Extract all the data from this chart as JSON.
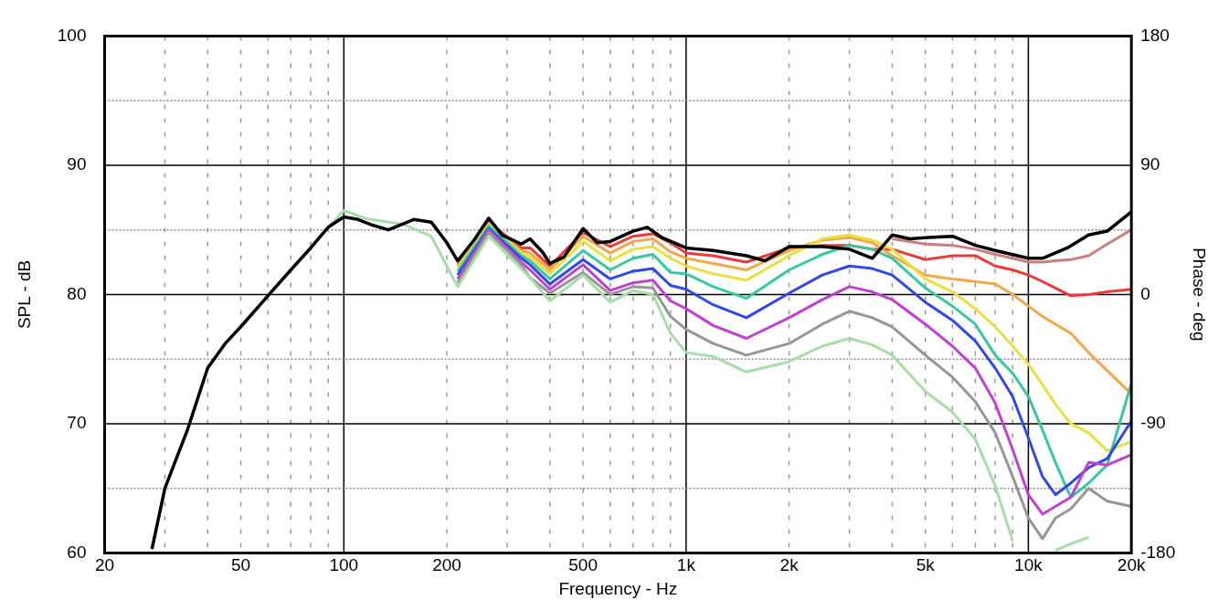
{
  "chart_data": {
    "type": "line",
    "xlabel": "Frequency - Hz",
    "ylabel": "SPL - dB",
    "y2label": "Phase - deg",
    "log": "x",
    "grid": true,
    "legend": false,
    "marker": "none",
    "line_style": "solid",
    "xlim": [
      20,
      20000
    ],
    "ylim": [
      60,
      100
    ],
    "y2lim": [
      -180,
      180
    ],
    "xticks": [
      20,
      {
        "value": 30,
        "label": null
      },
      {
        "value": 40,
        "label": null
      },
      50,
      {
        "value": 60,
        "label": null
      },
      {
        "value": 70,
        "label": null
      },
      {
        "value": 80,
        "label": null
      },
      {
        "value": 90,
        "label": null
      },
      100,
      200,
      {
        "value": 300,
        "label": null
      },
      {
        "value": 400,
        "label": null
      },
      500,
      {
        "value": 600,
        "label": null
      },
      {
        "value": 700,
        "label": null
      },
      {
        "value": 800,
        "label": null
      },
      {
        "value": 900,
        "label": null
      },
      {
        "value": 1000,
        "label": "1k"
      },
      {
        "value": 2000,
        "label": "2k"
      },
      {
        "value": 3000,
        "label": null
      },
      {
        "value": 4000,
        "label": null
      },
      {
        "value": 5000,
        "label": "5k"
      },
      {
        "value": 6000,
        "label": null
      },
      {
        "value": 7000,
        "label": null
      },
      {
        "value": 8000,
        "label": null
      },
      {
        "value": 9000,
        "label": null
      },
      {
        "value": 10000,
        "label": "10k"
      },
      {
        "value": 20000,
        "label": "20k"
      }
    ],
    "yticks": [
      60,
      {
        "value": 65,
        "label": null
      },
      70,
      {
        "value": 75,
        "label": null
      },
      80,
      {
        "value": 85,
        "label": null
      },
      90,
      {
        "value": 95,
        "label": null
      },
      100
    ],
    "y2ticks": [
      -180,
      -90,
      0,
      90,
      180
    ],
    "x": [
      215,
      265,
      330,
      350,
      400,
      500,
      600,
      700,
      800,
      900,
      1000,
      1200,
      1500,
      2000,
      2500,
      3000,
      3500,
      4000,
      5000,
      6000,
      7000,
      8000,
      9000,
      10000,
      11000,
      12000,
      13300,
      15000,
      17000,
      20000
    ],
    "series": [
      {
        "color": "#c98080",
        "values": [
          null,
          null,
          null,
          null,
          null,
          null,
          null,
          null,
          null,
          null,
          null,
          null,
          null,
          null,
          null,
          null,
          null,
          84.3,
          83.9,
          83.8,
          83.5,
          83.1,
          82.8,
          82.5,
          82.5,
          82.6,
          82.7,
          83.0,
          83.9,
          85.0
        ]
      },
      {
        "color": "#e83c3c",
        "values": [
          82.3,
          85.6,
          83.6,
          83.6,
          82.2,
          84.8,
          83.7,
          84.5,
          84.7,
          84.0,
          83.2,
          83.0,
          82.5,
          83.6,
          83.8,
          83.8,
          83.5,
          83.5,
          82.7,
          83.0,
          83.0,
          82.2,
          81.9,
          81.5,
          81.0,
          80.5,
          79.9,
          80.0,
          80.2,
          80.4
        ]
      },
      {
        "color": "#f0a848",
        "values": [
          82.2,
          85.5,
          83.4,
          83.2,
          81.9,
          84.5,
          83.2,
          84.1,
          84.3,
          83.3,
          82.8,
          82.4,
          81.9,
          83.4,
          84.2,
          84.4,
          84.0,
          83.0,
          81.5,
          81.2,
          81.0,
          80.8,
          80.0,
          79.1,
          78.3,
          77.7,
          77.0,
          75.5,
          74.1,
          72.3
        ]
      },
      {
        "color": "#e8e040",
        "values": [
          82.0,
          85.4,
          83.2,
          82.9,
          81.6,
          84.1,
          82.6,
          83.5,
          83.7,
          82.8,
          82.2,
          81.6,
          81.1,
          83.0,
          84.3,
          84.6,
          84.2,
          83.5,
          81.2,
          80.2,
          78.9,
          77.5,
          76.0,
          74.6,
          73.0,
          71.5,
          70.0,
          69.3,
          67.9,
          68.6
        ]
      },
      {
        "color": "#38c8a0",
        "values": [
          81.8,
          85.3,
          83.0,
          82.6,
          81.2,
          83.4,
          81.9,
          82.8,
          83.1,
          81.7,
          81.6,
          80.6,
          79.7,
          81.9,
          83.1,
          83.8,
          83.5,
          82.8,
          80.5,
          79.1,
          77.7,
          75.3,
          73.9,
          72.1,
          69.5,
          67.0,
          64.3,
          65.4,
          66.8,
          73.1
        ]
      },
      {
        "color": "#3048e8",
        "values": [
          81.5,
          85.1,
          82.8,
          82.3,
          80.8,
          82.7,
          81.2,
          81.8,
          82.0,
          80.7,
          80.4,
          79.2,
          78.2,
          80.1,
          81.5,
          82.2,
          82.0,
          81.5,
          79.4,
          78.0,
          76.4,
          74.3,
          72.1,
          68.9,
          65.9,
          64.5,
          65.4,
          66.6,
          67.3,
          70.2
        ]
      },
      {
        "color": "#c040d0",
        "values": [
          81.2,
          85.0,
          82.5,
          81.9,
          80.4,
          82.3,
          80.3,
          80.9,
          81.1,
          79.5,
          78.9,
          77.6,
          76.6,
          78.2,
          79.6,
          80.6,
          80.2,
          79.6,
          77.7,
          76.0,
          74.3,
          71.6,
          68.0,
          64.5,
          63.0,
          63.6,
          64.3,
          67.0,
          66.8,
          67.6
        ]
      },
      {
        "color": "#969696",
        "values": [
          80.9,
          84.8,
          82.3,
          81.3,
          80.1,
          81.7,
          80.0,
          80.6,
          80.5,
          78.3,
          77.3,
          76.2,
          75.3,
          76.2,
          77.7,
          78.7,
          78.2,
          77.5,
          75.3,
          73.6,
          71.7,
          69.3,
          65.9,
          62.7,
          61.1,
          62.7,
          63.4,
          65.0,
          64.0,
          63.6
        ]
      },
      {
        "color": "#a8dca8",
        "x": [
          90,
          100,
          115,
          150,
          180,
          215,
          265,
          330,
          350,
          400,
          500,
          600,
          700,
          800,
          900,
          1000,
          1200,
          1500,
          2000,
          2500,
          3000,
          3500,
          4000,
          5000,
          6000,
          7000,
          8000,
          9000,
          10000,
          12000,
          13300,
          15000
        ],
        "values": [
          85.2,
          86.5,
          85.9,
          85.4,
          84.5,
          80.6,
          84.5,
          82.0,
          81.3,
          79.5,
          81.5,
          79.4,
          80.3,
          80.0,
          77.0,
          75.5,
          75.2,
          74.0,
          74.8,
          76.0,
          76.6,
          76.1,
          75.3,
          72.5,
          70.9,
          68.8,
          65.2,
          60.9,
          null,
          60.2,
          60.7,
          61.2
        ]
      },
      {
        "color": "#000000",
        "x": [
          27.5,
          30,
          35,
          40,
          45,
          50,
          60,
          70,
          80,
          90,
          100,
          110,
          120,
          135,
          160,
          180,
          200,
          215,
          240,
          265,
          290,
          330,
          350,
          380,
          400,
          440,
          500,
          550,
          600,
          700,
          770,
          850,
          1000,
          1200,
          1500,
          1700,
          2000,
          2500,
          3000,
          3500,
          4000,
          4500,
          5000,
          6000,
          7000,
          8000,
          10000,
          11000,
          13000,
          15000,
          17000,
          20000
        ],
        "values": [
          60.3,
          65.0,
          69.6,
          74.3,
          76.2,
          77.5,
          79.9,
          81.9,
          83.6,
          85.2,
          86.0,
          85.8,
          85.4,
          85.0,
          85.8,
          85.6,
          84.0,
          82.6,
          84.2,
          85.9,
          84.6,
          83.9,
          84.3,
          83.3,
          82.4,
          82.9,
          85.1,
          84.0,
          84.1,
          84.9,
          85.2,
          84.4,
          83.6,
          83.4,
          83.0,
          82.6,
          83.7,
          83.7,
          83.5,
          82.8,
          84.6,
          84.3,
          84.4,
          84.5,
          83.8,
          83.4,
          82.8,
          82.8,
          83.6,
          84.6,
          84.9,
          86.4
        ]
      }
    ]
  }
}
